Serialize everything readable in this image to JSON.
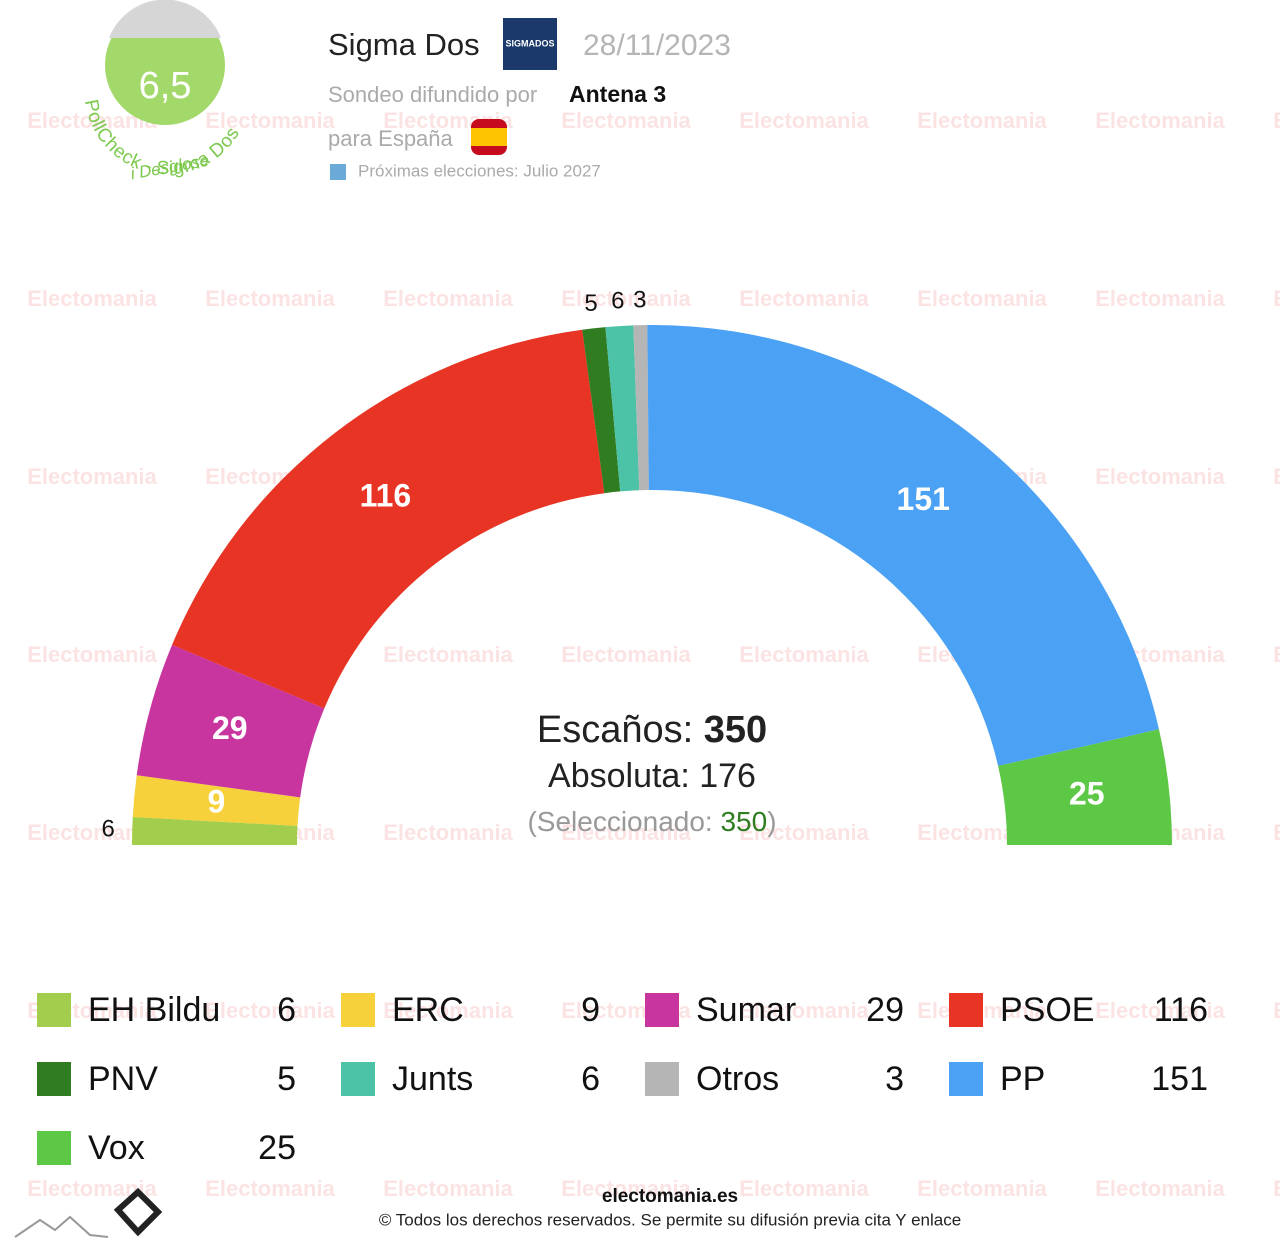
{
  "header": {
    "score": "6,5",
    "pollcheck": "PollCheck - Sigma Dos",
    "desglose": "i Desglose",
    "pollster": "Sigma Dos",
    "pollster_logo": "SIGMADOS",
    "date": "28/11/2023",
    "broadcast_label": "Sondeo difundido por",
    "broadcaster": "Antena 3",
    "region_label": "para España",
    "next_elections": "Próximas elecciones: Julio 2027"
  },
  "watermark": "Electomania",
  "chart_data": {
    "type": "parliament",
    "series": [
      {
        "name": "EH Bildu",
        "color": "#a3cd4c",
        "values": [
          6
        ]
      },
      {
        "name": "ERC",
        "color": "#f6d13c",
        "values": [
          9
        ]
      },
      {
        "name": "Sumar",
        "color": "#c8359f",
        "values": [
          29
        ]
      },
      {
        "name": "PSOE",
        "color": "#e73424",
        "values": [
          116
        ]
      },
      {
        "name": "PNV",
        "color": "#2f7d20",
        "values": [
          5
        ]
      },
      {
        "name": "Junts",
        "color": "#4cc2a6",
        "values": [
          6
        ]
      },
      {
        "name": "Otros",
        "color": "#b5b5b5",
        "values": [
          3
        ]
      },
      {
        "name": "PP",
        "color": "#4ba1f4",
        "values": [
          151
        ]
      },
      {
        "name": "Vox",
        "color": "#5cc846",
        "values": [
          25
        ]
      }
    ],
    "seats_label": "Escaños:",
    "seats_total": 350,
    "majority_label": "Absoluta:",
    "majority": 176,
    "selected_label": "(Seleccionado:",
    "selected": 350,
    "selected_close": ")"
  },
  "footer": {
    "site": "electomania.es",
    "rights": "© Todos los derechos reservados. Se permite su difusión previa cita Y enlace"
  }
}
